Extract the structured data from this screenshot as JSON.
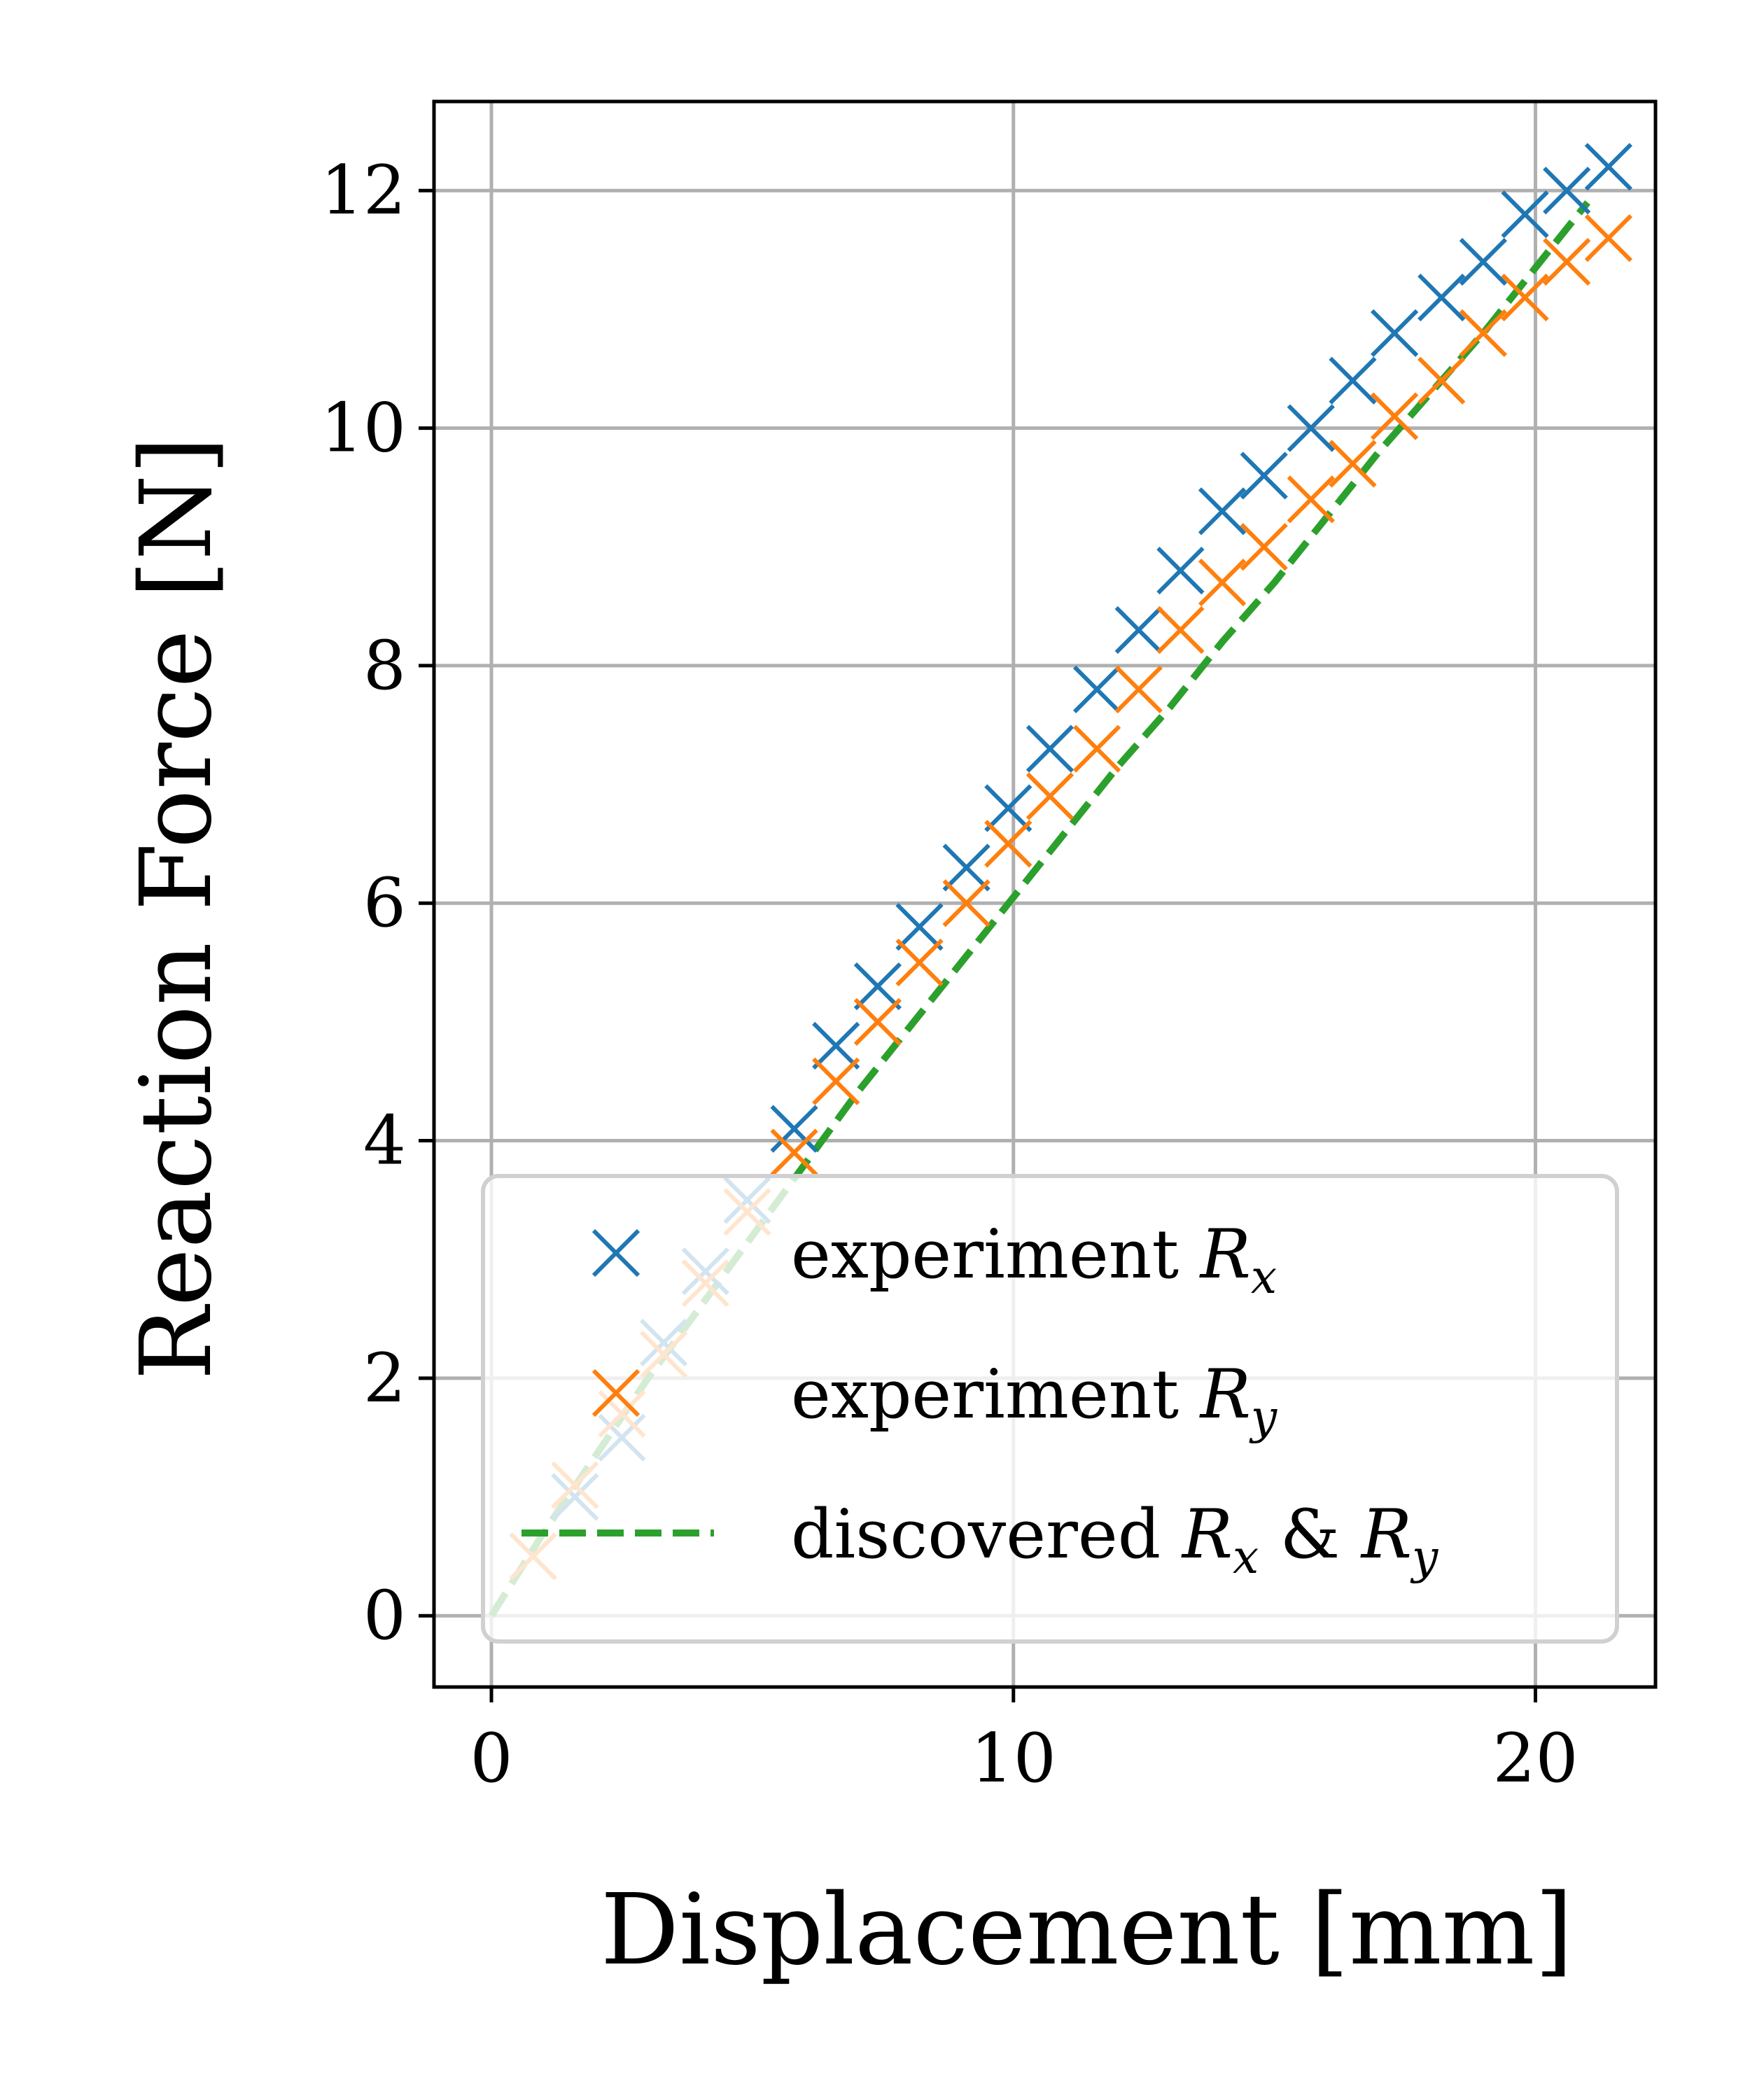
{
  "chart_data": {
    "type": "scatter",
    "xlabel": "Displacement [mm]",
    "ylabel": "Reaction Force [N]",
    "xlim": [
      -1.1,
      22.3
    ],
    "ylim": [
      -0.6,
      12.75
    ],
    "xticks": [
      "0",
      "10",
      "20"
    ],
    "xtick_values": [
      0,
      10,
      20
    ],
    "yticks": [
      "0",
      "2",
      "4",
      "6",
      "8",
      "10",
      "12"
    ],
    "ytick_values": [
      0,
      2,
      4,
      6,
      8,
      10,
      12
    ],
    "grid": true,
    "legend_position": "bottom-right",
    "series": [
      {
        "name": "experiment",
        "subscript": "x",
        "symbol": "R",
        "marker": "x",
        "color": "#1f77b4",
        "x": [
          0.8,
          1.6,
          2.5,
          3.3,
          4.1,
          4.9,
          5.8,
          6.6,
          7.4,
          8.2,
          9.1,
          9.9,
          10.7,
          11.6,
          12.4,
          13.2,
          14.0,
          14.8,
          15.7,
          16.5,
          17.3,
          18.2,
          19.0,
          19.8,
          20.6,
          21.4
        ],
        "y": [
          0.5,
          1.0,
          1.5,
          2.3,
          2.9,
          3.5,
          4.1,
          4.8,
          5.3,
          5.8,
          6.3,
          6.8,
          7.3,
          7.8,
          8.3,
          8.8,
          9.3,
          9.6,
          10.0,
          10.4,
          10.8,
          11.1,
          11.4,
          11.8,
          12.0,
          12.2
        ]
      },
      {
        "name": "experiment",
        "subscript": "y",
        "symbol": "R",
        "marker": "x",
        "color": "#ff7f0e",
        "x": [
          0.8,
          1.6,
          2.5,
          3.3,
          4.1,
          4.9,
          5.8,
          6.6,
          7.4,
          8.2,
          9.1,
          9.9,
          10.7,
          11.6,
          12.4,
          13.2,
          14.0,
          14.8,
          15.7,
          16.5,
          17.3,
          18.2,
          19.0,
          19.8,
          20.6,
          21.4
        ],
        "y": [
          0.5,
          1.1,
          1.7,
          2.2,
          2.8,
          3.4,
          3.9,
          4.5,
          5.0,
          5.5,
          6.0,
          6.5,
          6.9,
          7.3,
          7.8,
          8.3,
          8.7,
          9.0,
          9.4,
          9.7,
          10.1,
          10.4,
          10.8,
          11.1,
          11.4,
          11.6
        ]
      },
      {
        "name": "discovered",
        "label_parts": [
          "R",
          "x",
          " & ",
          "R",
          "y"
        ],
        "style": "dashed",
        "color": "#2ca02c",
        "x": [
          0,
          1,
          2,
          3,
          4,
          5,
          6,
          7,
          8,
          9,
          10,
          11,
          12,
          13,
          14,
          15,
          16,
          17,
          18,
          19,
          20,
          21
        ],
        "y": [
          0,
          0.7,
          1.35,
          2.0,
          2.6,
          3.2,
          3.8,
          4.4,
          4.95,
          5.5,
          6.05,
          6.6,
          7.15,
          7.65,
          8.2,
          8.7,
          9.25,
          9.8,
          10.3,
          10.8,
          11.35,
          11.9
        ]
      }
    ]
  },
  "legend": {
    "items": [
      {
        "text": "experiment ",
        "sym": "R",
        "sub": "x"
      },
      {
        "text": "experiment ",
        "sym": "R",
        "sub": "y"
      },
      {
        "text": "discovered ",
        "sym": "R",
        "sub": "x",
        "amp": " & ",
        "sym2": "R",
        "sub2": "y"
      }
    ]
  }
}
